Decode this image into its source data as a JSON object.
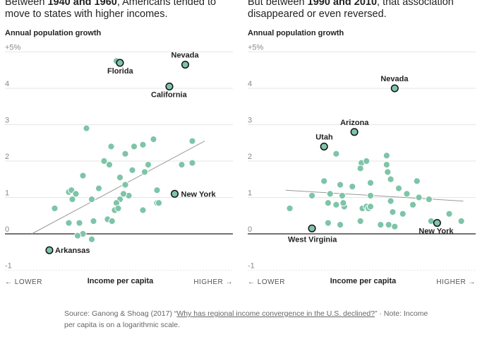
{
  "headlines": {
    "left": {
      "pre": "Between ",
      "bold": "1940 and 1960",
      "post": ", Americans tended to move to states with higher incomes."
    },
    "right": {
      "pre": "But between ",
      "bold": "1990 and 2010",
      "post": ", that association disappeared or even reversed."
    }
  },
  "colors": {
    "dot": "#7ec4a8",
    "dot_stroke": "#ffffff",
    "highlight_stroke": "#111111",
    "trend": "#999999",
    "zero_line": "#222222",
    "grid": "#e6e6e6"
  },
  "source": {
    "prefix": "Source: Ganong & Shoag (2017) “",
    "link": "Why has regional income convergence in the U.S. declined?",
    "suffix": "” · Note: Income per capita is on a logarithmic scale."
  },
  "chart_data": [
    {
      "type": "scatter",
      "title": "Between 1940 and 1960, Americans tended to move to states with higher incomes.",
      "ylabel": "Annual population growth",
      "xlabel": "Income per capita",
      "x_low_label": "← LOWER",
      "x_high_label": "HIGHER →",
      "ylim": [
        -1,
        5
      ],
      "xlim": [
        0,
        10
      ],
      "y_ticks": [
        -1,
        0,
        1,
        2,
        3,
        4,
        5
      ],
      "y_tick_labels": [
        "-1",
        "0",
        "1",
        "2",
        "3",
        "4",
        "+5%"
      ],
      "trend": {
        "x": [
          0.2,
          10
        ],
        "y": [
          0.0,
          2.55
        ]
      },
      "highlighted": [
        {
          "name": "Florida",
          "x": 5.2,
          "y": 4.7
        },
        {
          "name": "Nevada",
          "x": 8.9,
          "y": 4.65
        },
        {
          "name": "California",
          "x": 8.0,
          "y": 4.05
        },
        {
          "name": "New York",
          "x": 8.3,
          "y": 1.1
        },
        {
          "name": "Arkansas",
          "x": 1.2,
          "y": -0.45
        }
      ],
      "points": [
        {
          "x": 3.3,
          "y": 2.9
        },
        {
          "x": 5.0,
          "y": 4.75
        },
        {
          "x": 4.7,
          "y": 2.4
        },
        {
          "x": 5.5,
          "y": 2.2
        },
        {
          "x": 6.0,
          "y": 2.4
        },
        {
          "x": 6.5,
          "y": 2.45
        },
        {
          "x": 7.1,
          "y": 2.6
        },
        {
          "x": 9.3,
          "y": 2.55
        },
        {
          "x": 8.7,
          "y": 1.9
        },
        {
          "x": 9.3,
          "y": 1.95
        },
        {
          "x": 4.3,
          "y": 2.0
        },
        {
          "x": 4.6,
          "y": 1.9
        },
        {
          "x": 5.9,
          "y": 1.75
        },
        {
          "x": 6.8,
          "y": 1.9
        },
        {
          "x": 5.2,
          "y": 1.55
        },
        {
          "x": 3.1,
          "y": 1.6
        },
        {
          "x": 6.6,
          "y": 1.7
        },
        {
          "x": 5.5,
          "y": 1.35
        },
        {
          "x": 2.3,
          "y": 1.15
        },
        {
          "x": 2.45,
          "y": 1.2
        },
        {
          "x": 2.7,
          "y": 1.1
        },
        {
          "x": 4.0,
          "y": 1.25
        },
        {
          "x": 5.7,
          "y": 1.05
        },
        {
          "x": 5.4,
          "y": 1.1
        },
        {
          "x": 5.2,
          "y": 0.95
        },
        {
          "x": 7.3,
          "y": 1.2
        },
        {
          "x": 2.5,
          "y": 0.95
        },
        {
          "x": 3.6,
          "y": 0.95
        },
        {
          "x": 5.0,
          "y": 0.85
        },
        {
          "x": 7.3,
          "y": 0.85
        },
        {
          "x": 7.4,
          "y": 0.85
        },
        {
          "x": 1.5,
          "y": 0.7
        },
        {
          "x": 6.5,
          "y": 0.65
        },
        {
          "x": 4.9,
          "y": 0.65
        },
        {
          "x": 5.1,
          "y": 0.7
        },
        {
          "x": 3.7,
          "y": 0.35
        },
        {
          "x": 4.5,
          "y": 0.4
        },
        {
          "x": 4.75,
          "y": 0.35
        },
        {
          "x": 2.3,
          "y": 0.3
        },
        {
          "x": 2.9,
          "y": 0.3
        },
        {
          "x": 3.1,
          "y": 0.0
        },
        {
          "x": 2.8,
          "y": -0.05
        },
        {
          "x": 3.6,
          "y": -0.15
        }
      ]
    },
    {
      "type": "scatter",
      "title": "But between 1990 and 2010, that association disappeared or even reversed.",
      "ylabel": "Annual population growth",
      "xlabel": "Income per capita",
      "x_low_label": "← LOWER",
      "x_high_label": "HIGHER →",
      "ylim": [
        -1,
        5
      ],
      "xlim": [
        0,
        10
      ],
      "y_ticks": [
        -1,
        0,
        1,
        2,
        3,
        4,
        5
      ],
      "y_tick_labels": [
        "-1",
        "0",
        "1",
        "2",
        "3",
        "4",
        "+5%"
      ],
      "trend": {
        "x": [
          0.8,
          9.6
        ],
        "y": [
          1.2,
          0.9
        ]
      },
      "highlighted": [
        {
          "name": "Nevada",
          "x": 6.2,
          "y": 4.0
        },
        {
          "name": "Arizona",
          "x": 4.2,
          "y": 2.8
        },
        {
          "name": "Utah",
          "x": 2.7,
          "y": 2.4
        },
        {
          "name": "West Virginia",
          "x": 2.1,
          "y": 0.15
        },
        {
          "name": "New York",
          "x": 8.3,
          "y": 0.3
        }
      ],
      "points": [
        {
          "x": 3.3,
          "y": 2.2
        },
        {
          "x": 5.8,
          "y": 2.15
        },
        {
          "x": 4.55,
          "y": 1.95
        },
        {
          "x": 4.8,
          "y": 2.0
        },
        {
          "x": 4.5,
          "y": 1.8
        },
        {
          "x": 5.8,
          "y": 1.9
        },
        {
          "x": 5.85,
          "y": 1.7
        },
        {
          "x": 2.7,
          "y": 1.45
        },
        {
          "x": 3.5,
          "y": 1.35
        },
        {
          "x": 4.1,
          "y": 1.3
        },
        {
          "x": 5.0,
          "y": 1.4
        },
        {
          "x": 6.0,
          "y": 1.5
        },
        {
          "x": 7.3,
          "y": 1.45
        },
        {
          "x": 2.1,
          "y": 1.05
        },
        {
          "x": 3.0,
          "y": 1.1
        },
        {
          "x": 3.6,
          "y": 1.05
        },
        {
          "x": 5.0,
          "y": 1.05
        },
        {
          "x": 6.4,
          "y": 1.25
        },
        {
          "x": 6.8,
          "y": 1.1
        },
        {
          "x": 7.4,
          "y": 1.0
        },
        {
          "x": 2.9,
          "y": 0.85
        },
        {
          "x": 3.3,
          "y": 0.8
        },
        {
          "x": 3.7,
          "y": 0.75
        },
        {
          "x": 3.65,
          "y": 0.85
        },
        {
          "x": 4.6,
          "y": 0.7
        },
        {
          "x": 4.8,
          "y": 0.75
        },
        {
          "x": 4.9,
          "y": 0.7
        },
        {
          "x": 5.0,
          "y": 0.75
        },
        {
          "x": 6.0,
          "y": 0.9
        },
        {
          "x": 7.1,
          "y": 0.8
        },
        {
          "x": 7.9,
          "y": 0.95
        },
        {
          "x": 1.0,
          "y": 0.7
        },
        {
          "x": 6.1,
          "y": 0.6
        },
        {
          "x": 6.6,
          "y": 0.55
        },
        {
          "x": 8.9,
          "y": 0.55
        },
        {
          "x": 2.9,
          "y": 0.3
        },
        {
          "x": 3.5,
          "y": 0.25
        },
        {
          "x": 4.5,
          "y": 0.35
        },
        {
          "x": 5.5,
          "y": 0.25
        },
        {
          "x": 5.9,
          "y": 0.25
        },
        {
          "x": 6.2,
          "y": 0.2
        },
        {
          "x": 8.0,
          "y": 0.35
        },
        {
          "x": 9.5,
          "y": 0.35
        }
      ]
    }
  ]
}
